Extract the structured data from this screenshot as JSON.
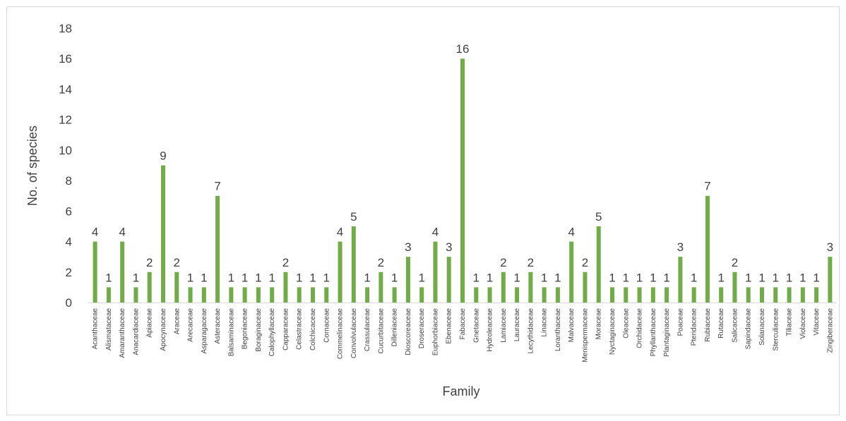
{
  "chart_data": {
    "type": "bar",
    "xlabel": "Family",
    "ylabel": "No. of species",
    "ylim": [
      0,
      18
    ],
    "ytick_step": 2,
    "grid": false,
    "legend": "none",
    "bar_color": "#70ad47",
    "categories": [
      "Acanthaceae",
      "Alismataceae",
      "Amaranthaceae",
      "Anacardiaceae",
      "Apiaceae",
      "Apocynaceae",
      "Araceae",
      "Arecaceae",
      "Asparagaceae",
      "Asteraceae",
      "Balsaminaceae",
      "Begoniaceae",
      "Boraginaceae",
      "Calophyllaceae",
      "Capparaceae",
      "Celastraceae",
      "Colchicaceae",
      "Cornaceae",
      "Commelinaceae",
      "Convolvulaceae",
      "Crassulaceae",
      "Cucurbitaceae",
      "Dilleniaceae",
      "Dioscoreaceae",
      "Droseraceae",
      "Euphorbiaceae",
      "Ebenaceae",
      "Fabaceae",
      "Gnetaceae",
      "Hydroleaceae",
      "Lamiaceae",
      "Lauraceae",
      "Lecythidaceae",
      "Linaceae",
      "Loranthaceae",
      "Malvaceae",
      "Menispermaceae",
      "Moraceae",
      "Nyctaginaceae",
      "Oleaceae",
      "Orchidaceae",
      "Phyllanthaceae",
      "Plantaginaceae",
      "Poaceae",
      "Pteridaceae",
      "Rubiaceae",
      "Rutaceae",
      "Salicaceae",
      "Sapindaceae",
      "Solanaceae",
      "Sterculiaceae",
      "Tiliaceae",
      "Violaceae",
      "Vitaceae",
      "Zingiberaceae"
    ],
    "values": [
      4,
      1,
      4,
      1,
      2,
      9,
      2,
      1,
      1,
      7,
      1,
      1,
      1,
      1,
      2,
      1,
      1,
      1,
      4,
      5,
      1,
      2,
      1,
      3,
      1,
      4,
      3,
      16,
      1,
      1,
      2,
      1,
      2,
      1,
      1,
      4,
      2,
      5,
      1,
      1,
      1,
      1,
      1,
      3,
      1,
      7,
      1,
      2,
      1,
      1,
      1,
      1,
      1,
      1,
      3
    ]
  }
}
